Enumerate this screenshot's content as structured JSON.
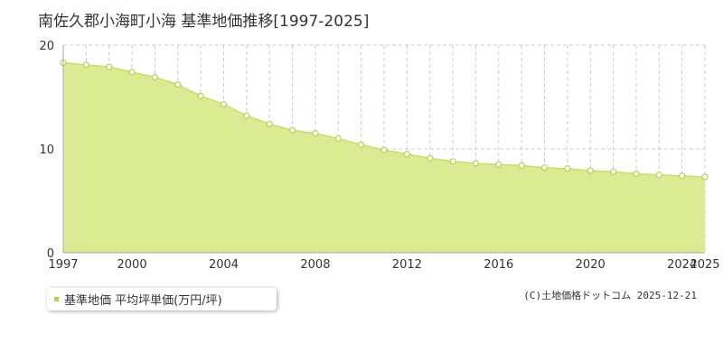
{
  "title": "南佐久郡小海町小海 基準地価推移[1997-2025]",
  "legend": {
    "label": "基準地価 平均坪単価(万円/坪)"
  },
  "credit": "(C)土地価格ドットコム 2025-12-21",
  "colors": {
    "fill": "#dbeb93",
    "line": "#c8de6a",
    "point_stroke": "#b5cf4e",
    "legend_swatch": "#b5cf4e",
    "grid": "#cccccc",
    "axis": "#aaaaaa"
  },
  "chart_data": {
    "type": "area",
    "title": "南佐久郡小海町小海 基準地価推移[1997-2025]",
    "xlabel": "",
    "ylabel": "",
    "xlim": [
      1997,
      2025
    ],
    "ylim": [
      0,
      20
    ],
    "y_ticks": [
      0,
      10,
      20
    ],
    "x_tick_labels": [
      "1997",
      "2000",
      "2004",
      "2008",
      "2012",
      "2016",
      "2020",
      "2024",
      "2025"
    ],
    "grid": true,
    "legend_position": "bottom-left",
    "series": [
      {
        "name": "基準地価 平均坪単価(万円/坪)",
        "x": [
          1997,
          1998,
          1999,
          2000,
          2001,
          2002,
          2003,
          2004,
          2005,
          2006,
          2007,
          2008,
          2009,
          2010,
          2011,
          2012,
          2013,
          2014,
          2015,
          2016,
          2017,
          2018,
          2019,
          2020,
          2021,
          2022,
          2023,
          2024,
          2025
        ],
        "values": [
          18.3,
          18.1,
          17.9,
          17.4,
          16.9,
          16.2,
          15.1,
          14.3,
          13.2,
          12.4,
          11.8,
          11.5,
          11.0,
          10.4,
          9.9,
          9.5,
          9.1,
          8.8,
          8.6,
          8.5,
          8.4,
          8.2,
          8.1,
          7.9,
          7.8,
          7.6,
          7.5,
          7.4,
          7.3
        ]
      }
    ]
  }
}
